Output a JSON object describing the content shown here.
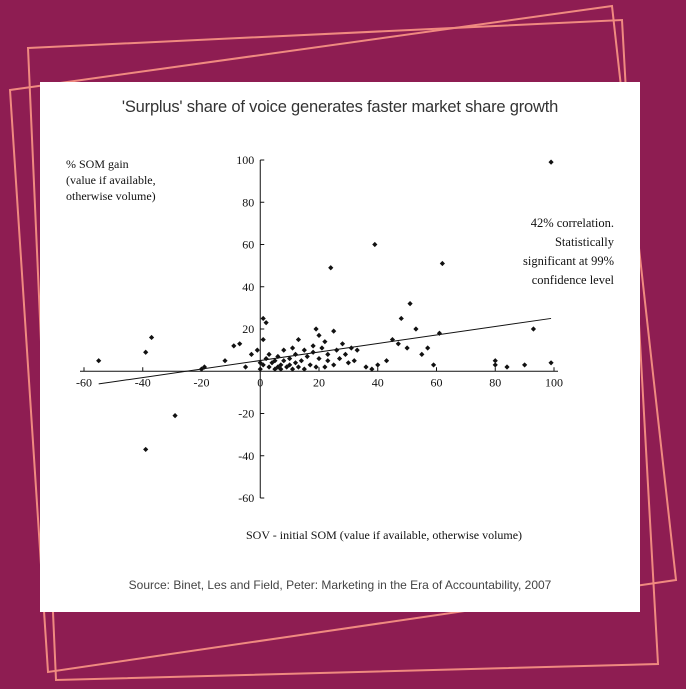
{
  "colors": {
    "background": "#8e1d52",
    "frame": "#f08a80",
    "card": "#ffffff",
    "ink": "#111111"
  },
  "chart_data": {
    "type": "scatter",
    "title": "'Surplus' share of voice generates faster market share growth",
    "ylabel": [
      "% SOM gain",
      "(value if available,",
      "otherwise volume)"
    ],
    "xlabel": "SOV - initial SOM (value if available, otherwise volume)",
    "xlim": [
      -60,
      100
    ],
    "ylim": [
      -60,
      100
    ],
    "xticks": [
      -60,
      -40,
      -20,
      0,
      20,
      40,
      60,
      80,
      100
    ],
    "yticks": [
      -60,
      -40,
      -20,
      20,
      40,
      60,
      80,
      100
    ],
    "x_tick_labels": [
      "-60",
      "-40",
      "-20",
      "0",
      "20",
      "40",
      "60",
      "80",
      "100"
    ],
    "y_tick_labels": [
      "-60",
      "-40",
      "-20",
      "20",
      "40",
      "60",
      "80",
      "100"
    ],
    "grid": false,
    "annotation": [
      "42% correlation.",
      "Statistically",
      "significant at 99%",
      "confidence level"
    ],
    "trendline": {
      "x": [
        -55,
        99
      ],
      "y": [
        -6,
        25
      ]
    },
    "points": [
      {
        "x": -55,
        "y": 5
      },
      {
        "x": -39,
        "y": 9
      },
      {
        "x": -37,
        "y": 16
      },
      {
        "x": -29,
        "y": -21
      },
      {
        "x": -39,
        "y": -37
      },
      {
        "x": -20,
        "y": 1
      },
      {
        "x": -19,
        "y": 2
      },
      {
        "x": -12,
        "y": 5
      },
      {
        "x": -9,
        "y": 12
      },
      {
        "x": -7,
        "y": 13
      },
      {
        "x": -5,
        "y": 2
      },
      {
        "x": -3,
        "y": 8
      },
      {
        "x": -1,
        "y": 10
      },
      {
        "x": 0,
        "y": 4
      },
      {
        "x": 0,
        "y": 1
      },
      {
        "x": 1,
        "y": 15
      },
      {
        "x": 1,
        "y": 25
      },
      {
        "x": 2,
        "y": 23
      },
      {
        "x": 1,
        "y": 3
      },
      {
        "x": 2,
        "y": 6
      },
      {
        "x": 3,
        "y": 2
      },
      {
        "x": 3,
        "y": 8
      },
      {
        "x": 4,
        "y": 4
      },
      {
        "x": 5,
        "y": 1
      },
      {
        "x": 5,
        "y": 5
      },
      {
        "x": 6,
        "y": 2
      },
      {
        "x": 6,
        "y": 7
      },
      {
        "x": 7,
        "y": 3
      },
      {
        "x": 7,
        "y": 1
      },
      {
        "x": 8,
        "y": 10
      },
      {
        "x": 8,
        "y": 5
      },
      {
        "x": 9,
        "y": 2
      },
      {
        "x": 10,
        "y": 3
      },
      {
        "x": 10,
        "y": 6
      },
      {
        "x": 11,
        "y": 1
      },
      {
        "x": 11,
        "y": 11
      },
      {
        "x": 12,
        "y": 4
      },
      {
        "x": 12,
        "y": 8
      },
      {
        "x": 13,
        "y": 2
      },
      {
        "x": 13,
        "y": 15
      },
      {
        "x": 14,
        "y": 5
      },
      {
        "x": 15,
        "y": 10
      },
      {
        "x": 15,
        "y": 1
      },
      {
        "x": 16,
        "y": 7
      },
      {
        "x": 17,
        "y": 3
      },
      {
        "x": 18,
        "y": 9
      },
      {
        "x": 18,
        "y": 12
      },
      {
        "x": 19,
        "y": 2
      },
      {
        "x": 19,
        "y": 20
      },
      {
        "x": 20,
        "y": 6
      },
      {
        "x": 20,
        "y": 17
      },
      {
        "x": 21,
        "y": 11
      },
      {
        "x": 22,
        "y": 2
      },
      {
        "x": 22,
        "y": 14
      },
      {
        "x": 23,
        "y": 8
      },
      {
        "x": 23,
        "y": 5
      },
      {
        "x": 24,
        "y": 49
      },
      {
        "x": 25,
        "y": 19
      },
      {
        "x": 25,
        "y": 3
      },
      {
        "x": 26,
        "y": 10
      },
      {
        "x": 27,
        "y": 6
      },
      {
        "x": 28,
        "y": 13
      },
      {
        "x": 29,
        "y": 8
      },
      {
        "x": 30,
        "y": 4
      },
      {
        "x": 31,
        "y": 11
      },
      {
        "x": 32,
        "y": 5
      },
      {
        "x": 33,
        "y": 10
      },
      {
        "x": 36,
        "y": 2
      },
      {
        "x": 38,
        "y": 1
      },
      {
        "x": 39,
        "y": 60
      },
      {
        "x": 40,
        "y": 3
      },
      {
        "x": 43,
        "y": 5
      },
      {
        "x": 45,
        "y": 15
      },
      {
        "x": 47,
        "y": 13
      },
      {
        "x": 48,
        "y": 25
      },
      {
        "x": 50,
        "y": 11
      },
      {
        "x": 51,
        "y": 32
      },
      {
        "x": 53,
        "y": 20
      },
      {
        "x": 55,
        "y": 8
      },
      {
        "x": 57,
        "y": 11
      },
      {
        "x": 59,
        "y": 3
      },
      {
        "x": 61,
        "y": 18
      },
      {
        "x": 62,
        "y": 51
      },
      {
        "x": 80,
        "y": 3
      },
      {
        "x": 80,
        "y": 5
      },
      {
        "x": 84,
        "y": 2
      },
      {
        "x": 90,
        "y": 3
      },
      {
        "x": 93,
        "y": 20
      },
      {
        "x": 99,
        "y": 4
      },
      {
        "x": 99,
        "y": 99
      }
    ]
  },
  "source": "Source: Binet, Les and Field, Peter: Marketing in the Era of Accountability, 2007"
}
